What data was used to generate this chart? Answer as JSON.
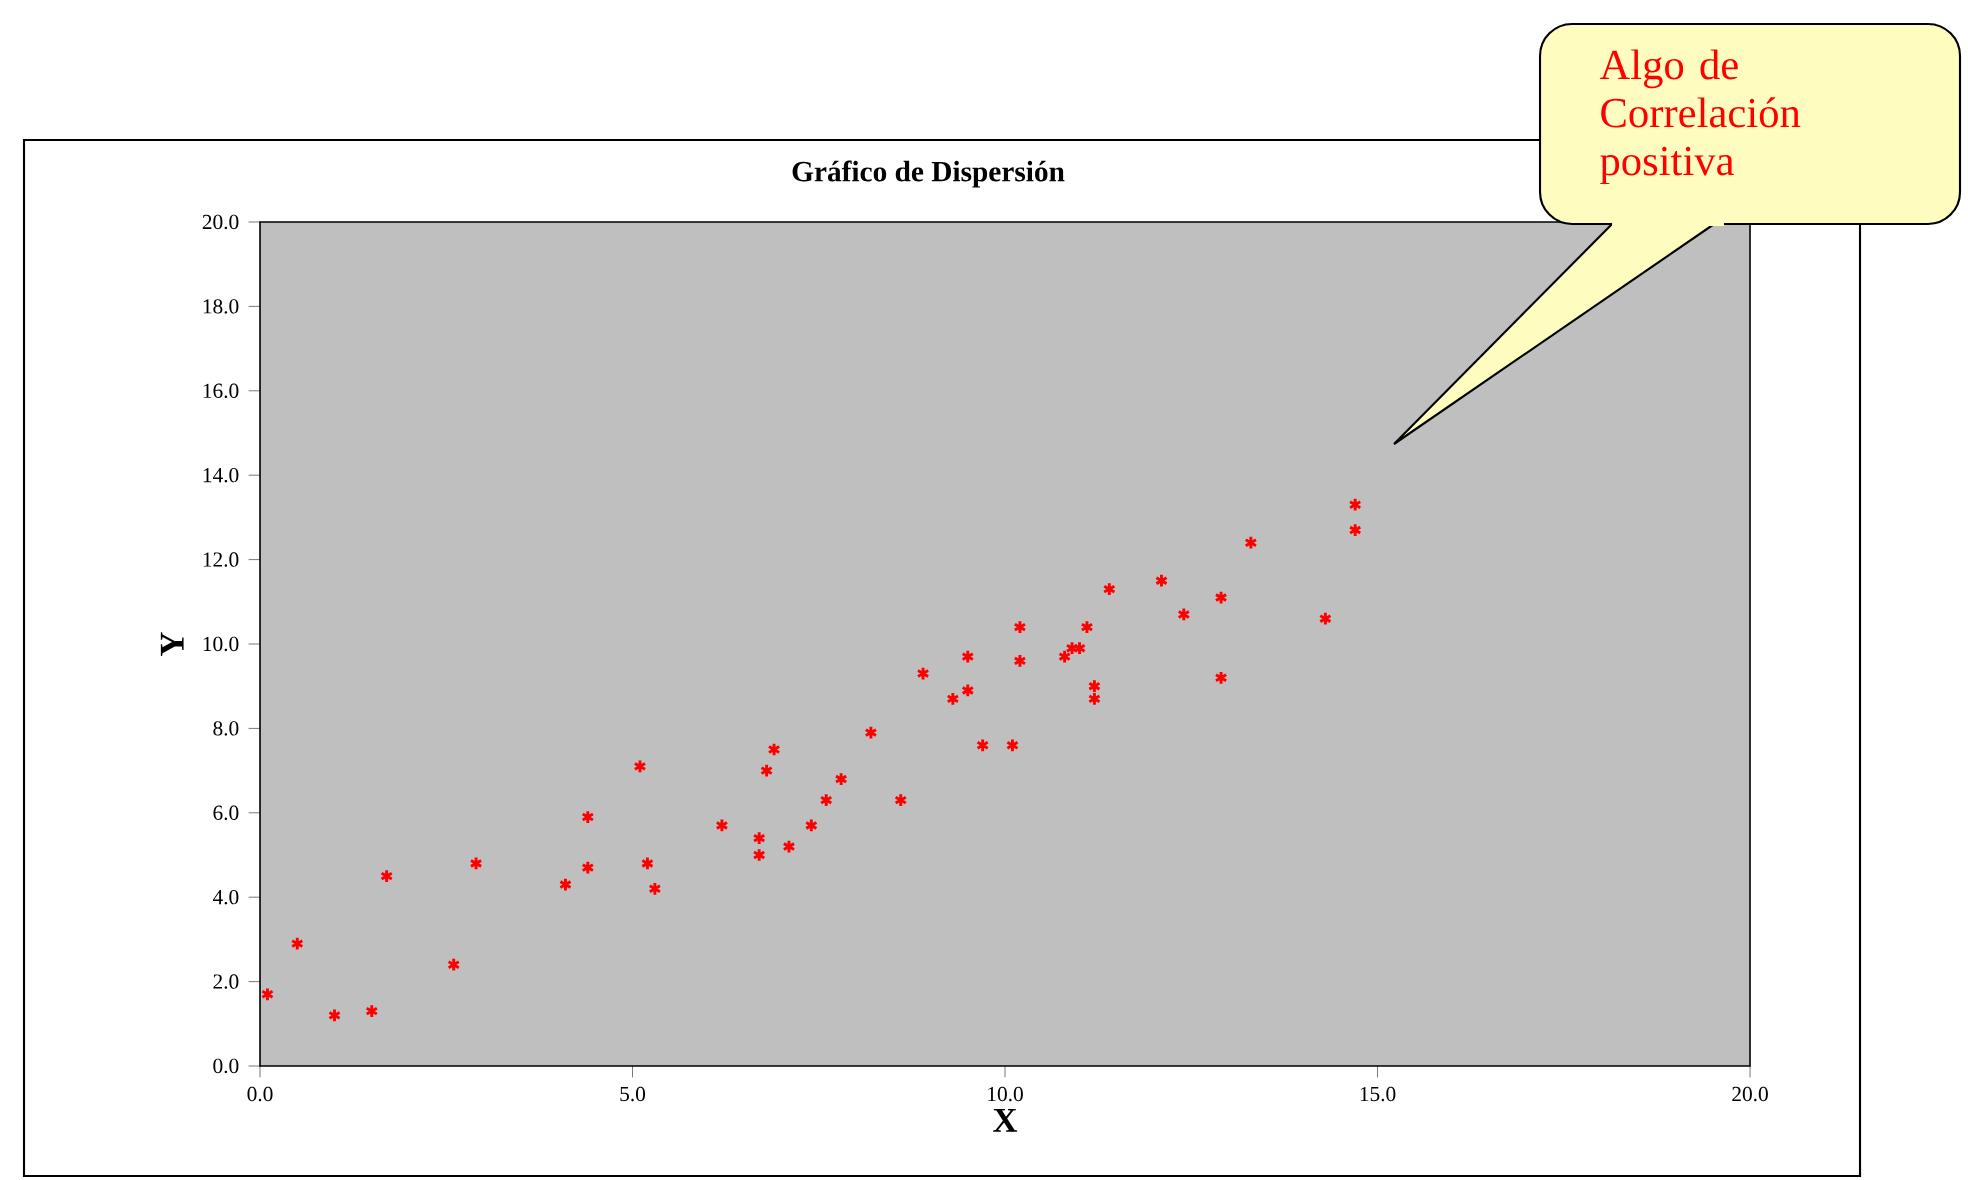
{
  "chart_data": {
    "type": "scatter",
    "title": "Gráfico de Dispersión",
    "xlabel": "X",
    "ylabel": "Y",
    "annotations": [
      "Algo de Correlación positiva"
    ],
    "xlim": [
      0,
      20
    ],
    "ylim": [
      0,
      20
    ],
    "xticks": [
      {
        "value": 0,
        "label": "0.0"
      },
      {
        "value": 5,
        "label": "5.0"
      },
      {
        "value": 10,
        "label": "10.0"
      },
      {
        "value": 15,
        "label": "15.0"
      },
      {
        "value": 20,
        "label": "20.0"
      }
    ],
    "yticks": [
      {
        "value": 0,
        "label": "0.0"
      },
      {
        "value": 2,
        "label": "2.0"
      },
      {
        "value": 4,
        "label": "4.0"
      },
      {
        "value": 6,
        "label": "6.0"
      },
      {
        "value": 8,
        "label": "8.0"
      },
      {
        "value": 10,
        "label": "10.0"
      },
      {
        "value": 12,
        "label": "12.0"
      },
      {
        "value": 14,
        "label": "14.0"
      },
      {
        "value": 16,
        "label": "16.0"
      },
      {
        "value": 18,
        "label": "18.0"
      },
      {
        "value": 20,
        "label": "20.0"
      }
    ],
    "grid": false,
    "marker": "cross",
    "series": [
      {
        "color": "#ff0000",
        "x": [
          0.1,
          0.5,
          1.0,
          1.5,
          1.7,
          2.6,
          2.9,
          4.1,
          4.4,
          4.4,
          5.1,
          5.2,
          5.3,
          6.2,
          6.7,
          6.7,
          6.8,
          6.9,
          7.1,
          7.4,
          7.6,
          7.8,
          8.2,
          8.6,
          8.9,
          9.3,
          9.5,
          9.5,
          9.7,
          10.1,
          10.2,
          10.2,
          10.8,
          10.9,
          11.0,
          11.1,
          11.2,
          11.2,
          11.4,
          12.1,
          12.4,
          12.9,
          12.9,
          13.3,
          14.3,
          14.7,
          14.7
        ],
        "values": [
          1.7,
          2.9,
          1.2,
          1.3,
          4.5,
          2.4,
          4.8,
          4.3,
          4.7,
          5.9,
          7.1,
          4.8,
          4.2,
          5.7,
          5.0,
          5.4,
          7.0,
          7.5,
          5.2,
          5.7,
          6.3,
          6.8,
          7.9,
          6.3,
          9.3,
          8.7,
          9.7,
          8.9,
          7.6,
          7.6,
          10.4,
          9.6,
          9.7,
          9.9,
          9.9,
          10.4,
          9.0,
          8.7,
          11.3,
          11.5,
          10.7,
          11.1,
          9.2,
          12.4,
          10.6,
          12.7,
          13.3
        ]
      }
    ]
  }
}
